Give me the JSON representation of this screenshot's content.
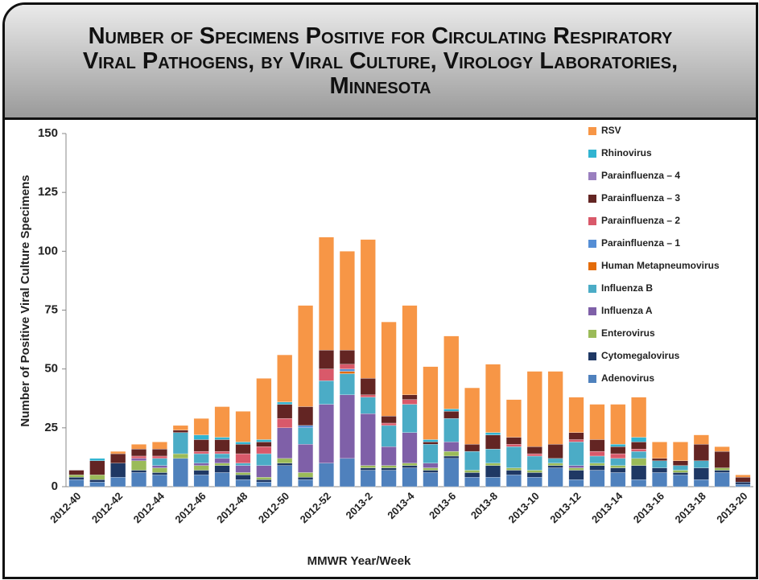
{
  "chart_data": {
    "type": "stacked_bar",
    "title": "Number of Specimens Positive for Circulating Respiratory Viral Pathogens, by Viral Culture, Virology Laboratories, Minnesota",
    "y_label": "Number of Positive Viral Culture Specimens",
    "x_label": "MMWR Year/Week",
    "categories": [
      "2012-40",
      null,
      "2012-42",
      null,
      "2012-44",
      null,
      "2012-46",
      null,
      "2012-48",
      null,
      "2012-50",
      null,
      "2012-52",
      null,
      "2013-2",
      null,
      "2013-4",
      null,
      "2013-6",
      null,
      "2013-8",
      null,
      "2013-10",
      null,
      "2013-12",
      null,
      "2013-14",
      null,
      "2013-16",
      null,
      "2013-18",
      null,
      "2013-20"
    ],
    "ylim": [
      0,
      150
    ],
    "yticks": [
      0,
      25,
      50,
      75,
      100,
      125,
      150
    ],
    "legend": "top-right",
    "series": [
      {
        "name": "Adenovirus",
        "color": "#4f81bd",
        "values": [
          3,
          2,
          4,
          6,
          5,
          12,
          5,
          6,
          3,
          2,
          9,
          3,
          10,
          12,
          7,
          7,
          8,
          6,
          12,
          4,
          4,
          5,
          4,
          8,
          3,
          7,
          6,
          3,
          6,
          5,
          3,
          6,
          1
        ]
      },
      {
        "name": "Cytomegalovirus",
        "color": "#1f3864",
        "values": [
          1,
          1,
          6,
          1,
          1,
          0,
          2,
          3,
          2,
          1,
          1,
          1,
          0,
          0,
          1,
          1,
          1,
          1,
          1,
          2,
          5,
          2,
          2,
          1,
          4,
          2,
          2,
          6,
          2,
          1,
          5,
          1,
          1
        ]
      },
      {
        "name": "Enterovirus",
        "color": "#9bbb59",
        "values": [
          1,
          2,
          0,
          4,
          2,
          2,
          2,
          1,
          1,
          1,
          2,
          2,
          0,
          0,
          1,
          1,
          1,
          1,
          2,
          1,
          1,
          1,
          1,
          1,
          1,
          1,
          1,
          3,
          0,
          1,
          0,
          1,
          0
        ]
      },
      {
        "name": "Influenza A",
        "color": "#7f60a8",
        "values": [
          0,
          0,
          0,
          1,
          1,
          0,
          1,
          2,
          3,
          5,
          13,
          12,
          25,
          27,
          22,
          8,
          13,
          2,
          4,
          0,
          0,
          0,
          0,
          0,
          1,
          0,
          0,
          0,
          0,
          0,
          0,
          0,
          0
        ]
      },
      {
        "name": "Influenza B",
        "color": "#4bacc6",
        "values": [
          0,
          0,
          0,
          0,
          3,
          9,
          4,
          2,
          1,
          5,
          0,
          7,
          10,
          9,
          7,
          9,
          12,
          8,
          10,
          8,
          6,
          9,
          6,
          2,
          10,
          3,
          3,
          3,
          3,
          2,
          3,
          0,
          0
        ]
      },
      {
        "name": "Human Metapneumovirus",
        "color": "#e46c0a",
        "values": [
          0,
          0,
          0,
          0,
          0,
          0,
          0,
          0,
          0,
          0,
          0,
          0,
          0,
          1,
          0,
          0,
          0,
          0,
          0,
          0,
          0,
          0,
          0,
          0,
          0,
          0,
          0,
          0,
          0,
          0,
          0,
          0,
          0
        ]
      },
      {
        "name": "Parainfluenza – 1",
        "color": "#558ed5",
        "values": [
          0,
          0,
          0,
          0,
          0,
          0,
          0,
          0,
          0,
          0,
          0,
          1,
          0,
          1,
          0,
          0,
          0,
          0,
          0,
          0,
          0,
          0,
          0,
          0,
          0,
          0,
          0,
          0,
          0,
          0,
          0,
          0,
          0
        ]
      },
      {
        "name": "Parainfluenza – 2",
        "color": "#d9596a",
        "values": [
          0,
          0,
          0,
          1,
          1,
          0,
          1,
          1,
          4,
          3,
          4,
          0,
          5,
          2,
          1,
          1,
          2,
          0,
          0,
          0,
          0,
          1,
          1,
          0,
          1,
          2,
          2,
          1,
          0,
          0,
          0,
          0,
          0
        ]
      },
      {
        "name": "Parainfluenza – 3",
        "color": "#632523",
        "values": [
          2,
          6,
          4,
          3,
          3,
          1,
          5,
          5,
          4,
          2,
          6,
          8,
          8,
          6,
          7,
          3,
          2,
          1,
          3,
          3,
          6,
          3,
          3,
          6,
          3,
          5,
          3,
          3,
          1,
          2,
          7,
          7,
          2
        ]
      },
      {
        "name": "Parainfluenza – 4",
        "color": "#9a7fbf",
        "values": [
          0,
          0,
          0,
          0,
          0,
          0,
          0,
          0,
          0,
          0,
          0,
          0,
          0,
          0,
          0,
          0,
          0,
          0,
          0,
          0,
          0,
          0,
          0,
          0,
          0,
          0,
          0,
          0,
          0,
          0,
          0,
          0,
          0
        ]
      },
      {
        "name": "Rhinovirus",
        "color": "#31b4d1",
        "values": [
          0,
          1,
          0,
          0,
          0,
          0,
          2,
          1,
          1,
          1,
          1,
          0,
          0,
          0,
          0,
          0,
          0,
          1,
          1,
          0,
          1,
          0,
          0,
          0,
          0,
          0,
          1,
          2,
          0,
          0,
          0,
          0,
          0
        ]
      },
      {
        "name": "RSV",
        "color": "#f79646",
        "values": [
          0,
          0,
          1,
          2,
          3,
          2,
          7,
          13,
          13,
          26,
          20,
          43,
          48,
          42,
          59,
          40,
          38,
          31,
          31,
          24,
          29,
          16,
          32,
          31,
          15,
          15,
          17,
          17,
          7,
          8,
          4,
          2,
          1
        ]
      }
    ]
  }
}
